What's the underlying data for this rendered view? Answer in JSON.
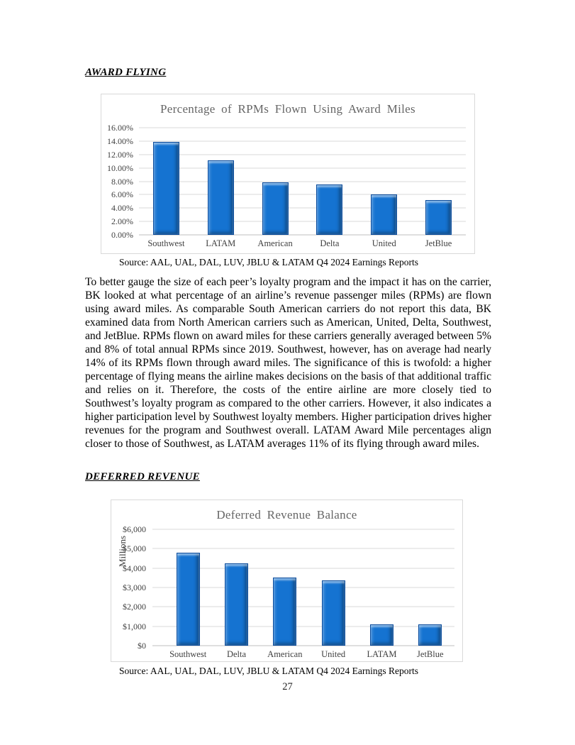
{
  "page": {
    "number": "27"
  },
  "sections": [
    {
      "heading": "AWARD FLYING",
      "source": "Source: AAL, UAL, DAL, LUV, JBLU & LATAM Q4 2024 Earnings Reports",
      "paragraph": "To better gauge the size of each peer’s loyalty program and the impact it has on the carrier, BK looked at what percentage of an airline’s revenue passenger miles (RPMs) are flown using award miles. As comparable South American carriers do not report this data, BK examined data from North American carriers such as American, United, Delta, Southwest, and JetBlue. RPMs flown on award miles for these carriers generally averaged between 5% and 8% of total annual RPMs since 2019. Southwest, however, has on average had nearly 14% of its RPMs flown through award miles. The significance of this is twofold: a higher percentage of flying means the airline makes decisions on the basis of that additional traffic and relies on it. Therefore, the costs of the entire airline are more closely tied to Southwest’s loyalty program as compared to the other carriers. However, it also indicates a higher participation level by Southwest loyalty members. Higher participation drives higher revenues for the program and Southwest overall. LATAM Award Mile percentages align closer to those of Southwest, as LATAM averages 11% of its flying through award miles."
    },
    {
      "heading": "DEFERRED REVENUE",
      "source": "Source: AAL, UAL, DAL, LUV, JBLU & LATAM Q4 2024 Earnings Reports"
    }
  ],
  "chart_data": [
    {
      "type": "bar",
      "title": "Percentage of RPMs Flown Using Award Miles",
      "categories": [
        "Southwest",
        "LATAM",
        "American",
        "Delta",
        "United",
        "JetBlue"
      ],
      "values": [
        13.9,
        11.1,
        7.8,
        7.5,
        6.0,
        5.2
      ],
      "unit": "%",
      "xlabel": "",
      "ylabel": "",
      "ylim": [
        0,
        16
      ],
      "ytick_step": 2,
      "ytick_labels": [
        "0.00%",
        "2.00%",
        "4.00%",
        "6.00%",
        "8.00%",
        "10.00%",
        "12.00%",
        "14.00%",
        "16.00%"
      ],
      "grid": true,
      "legend": "none",
      "bar_color": "#1573D1",
      "bar_border_color": "#0B4C9C",
      "title_color": "#666666",
      "gridline_color": "#D9D9D9"
    },
    {
      "type": "bar",
      "title": "Deferred Revenue Balance",
      "categories": [
        "Southwest",
        "Delta",
        "American",
        "United",
        "LATAM",
        "JetBlue"
      ],
      "values": [
        4800,
        4250,
        3500,
        3350,
        1100,
        1080
      ],
      "unit": "$M",
      "xlabel": "",
      "ylabel": "Millions",
      "ylim": [
        0,
        6000
      ],
      "ytick_step": 1000,
      "ytick_labels": [
        "$0",
        "$1,000",
        "$2,000",
        "$3,000",
        "$4,000",
        "$5,000",
        "$6,000"
      ],
      "grid": true,
      "legend": "none",
      "bar_color": "#1573D1",
      "bar_border_color": "#0B4C9C",
      "title_color": "#666666",
      "gridline_color": "#D9D9D9"
    }
  ]
}
